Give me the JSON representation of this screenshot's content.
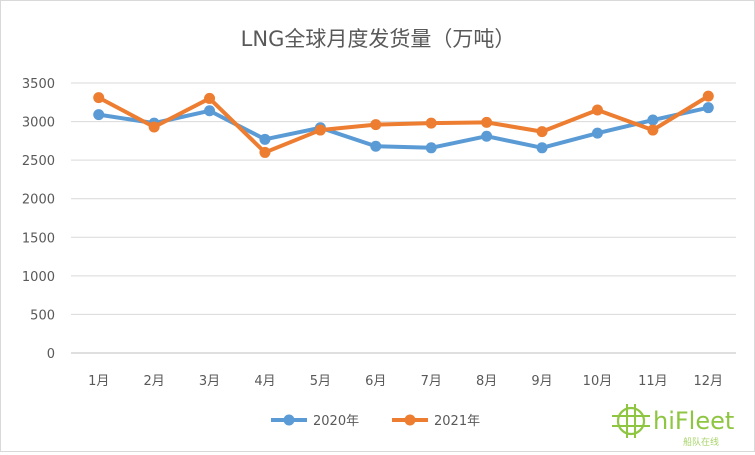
{
  "chart_data": {
    "type": "line",
    "title": "LNG全球月度发货量（万吨）",
    "categories": [
      "1月",
      "2月",
      "3月",
      "4月",
      "5月",
      "6月",
      "7月",
      "8月",
      "9月",
      "10月",
      "11月",
      "12月"
    ],
    "y_ticks": [
      "0",
      "500",
      "1000",
      "1500",
      "2000",
      "2500",
      "3000",
      "3500"
    ],
    "ylim": [
      0,
      3500
    ],
    "grid": true,
    "legend_position": "bottom",
    "series": [
      {
        "name": "2020年",
        "color": "#5b9bd5",
        "values": [
          3090,
          2980,
          3140,
          2770,
          2920,
          2680,
          2660,
          2810,
          2660,
          2850,
          3020,
          3180
        ]
      },
      {
        "name": "2021年",
        "color": "#ed7d31",
        "values": [
          3310,
          2930,
          3300,
          2600,
          2890,
          2960,
          2980,
          2990,
          2870,
          3150,
          2890,
          3330
        ]
      }
    ]
  },
  "watermark": {
    "text": "hiFleet",
    "subtext": "船队在线",
    "color": "#8ec641"
  }
}
